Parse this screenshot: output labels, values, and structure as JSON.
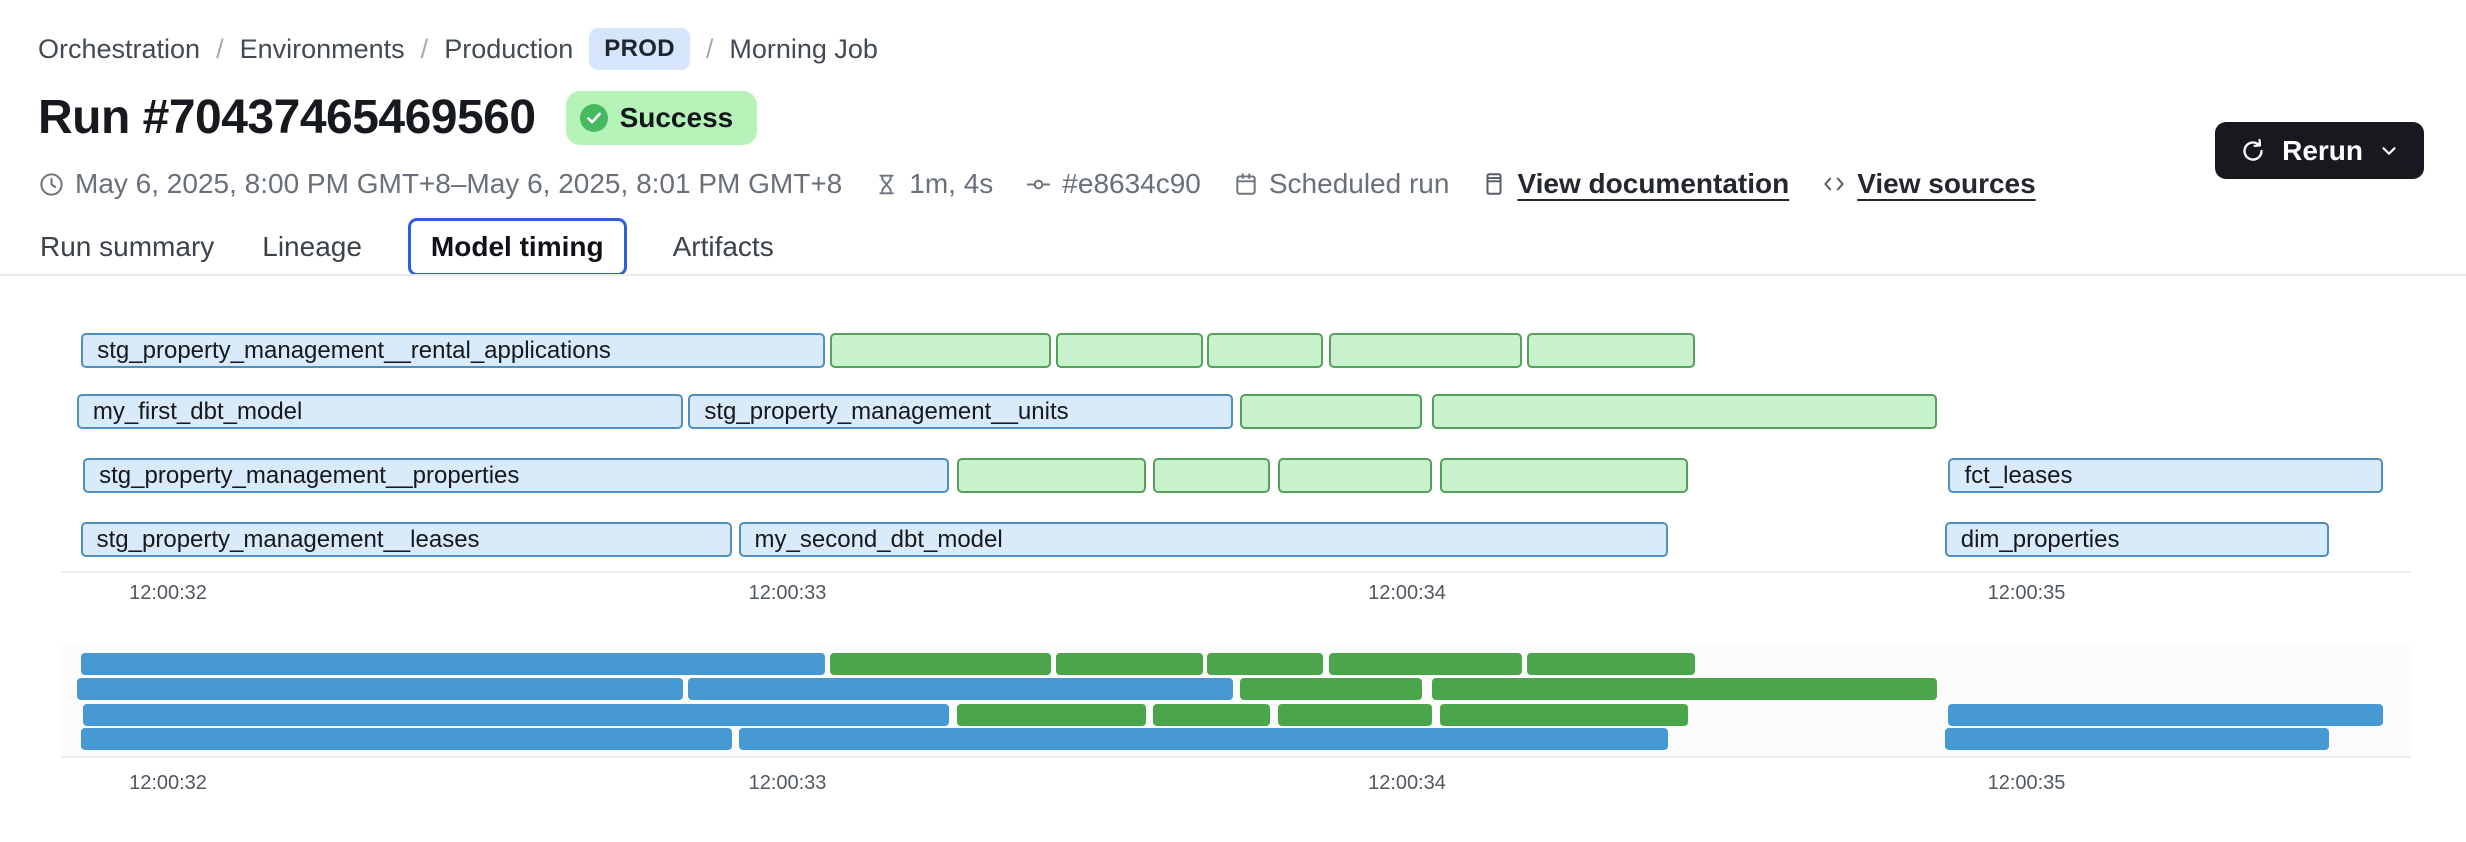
{
  "breadcrumb": {
    "separator": "/",
    "items": [
      "Orchestration",
      "Environments",
      "Production",
      "Morning Job"
    ],
    "env_badge": "PROD"
  },
  "header": {
    "title": "Run #70437465469560",
    "status": "Success"
  },
  "toolbar": {
    "rerun_label": "Rerun"
  },
  "meta": {
    "time_range": "May 6, 2025, 8:00 PM GMT+8–May 6, 2025, 8:01 PM GMT+8",
    "duration": "1m, 4s",
    "commit": "#e8634c90",
    "trigger": "Scheduled run",
    "doc_link": "View documentation",
    "sources_link": "View sources"
  },
  "tabs": [
    {
      "label": "Run summary",
      "active": false
    },
    {
      "label": "Lineage",
      "active": false
    },
    {
      "label": "Model timing",
      "active": true
    },
    {
      "label": "Artifacts",
      "active": false
    }
  ],
  "chart_data": {
    "type": "gantt",
    "title": "",
    "x_ticks": [
      "12:00:32",
      "12:00:33",
      "12:00:34",
      "12:00:35"
    ],
    "x_tick_seconds": [
      32,
      33,
      34,
      35
    ],
    "x_range_seconds": [
      31.83,
      35.62
    ],
    "colors": {
      "model_fill": "#d9eafa",
      "model_border": "#4e90c0",
      "test_fill": "#c8f2cc",
      "test_border": "#55a05a",
      "minimap_model": "#4699d2",
      "minimap_test": "#4ba54b"
    },
    "rows": [
      {
        "bars": [
          {
            "label": "stg_property_management__rental_applications",
            "kind": "model",
            "start": 31.86,
            "end": 33.06
          },
          {
            "label": "",
            "kind": "test",
            "start": 33.068,
            "end": 33.425
          },
          {
            "label": "",
            "kind": "test",
            "start": 33.433,
            "end": 33.67
          },
          {
            "label": "",
            "kind": "test",
            "start": 33.677,
            "end": 33.864
          },
          {
            "label": "",
            "kind": "test",
            "start": 33.874,
            "end": 34.186
          },
          {
            "label": "",
            "kind": "test",
            "start": 34.194,
            "end": 34.465
          }
        ]
      },
      {
        "bars": [
          {
            "label": "my_first_dbt_model",
            "kind": "model",
            "start": 31.853,
            "end": 32.832
          },
          {
            "label": "stg_property_management__units",
            "kind": "model",
            "start": 32.84,
            "end": 33.719
          },
          {
            "label": "",
            "kind": "test",
            "start": 33.73,
            "end": 34.024
          },
          {
            "label": "",
            "kind": "test",
            "start": 34.04,
            "end": 34.855
          }
        ]
      },
      {
        "bars": [
          {
            "label": "stg_property_management__properties",
            "kind": "model",
            "start": 31.863,
            "end": 33.26
          },
          {
            "label": "",
            "kind": "test",
            "start": 33.273,
            "end": 33.578
          },
          {
            "label": "",
            "kind": "test",
            "start": 33.59,
            "end": 33.779
          },
          {
            "label": "",
            "kind": "test",
            "start": 33.792,
            "end": 34.04
          },
          {
            "label": "",
            "kind": "test",
            "start": 34.053,
            "end": 34.454
          },
          {
            "label": "fct_leases",
            "kind": "model",
            "start": 34.874,
            "end": 35.575
          }
        ]
      },
      {
        "bars": [
          {
            "label": "stg_property_management__leases",
            "kind": "model",
            "start": 31.859,
            "end": 32.91
          },
          {
            "label": "my_second_dbt_model",
            "kind": "model",
            "start": 32.921,
            "end": 34.421
          },
          {
            "label": "dim_properties",
            "kind": "model",
            "start": 34.868,
            "end": 35.488
          }
        ]
      }
    ]
  }
}
